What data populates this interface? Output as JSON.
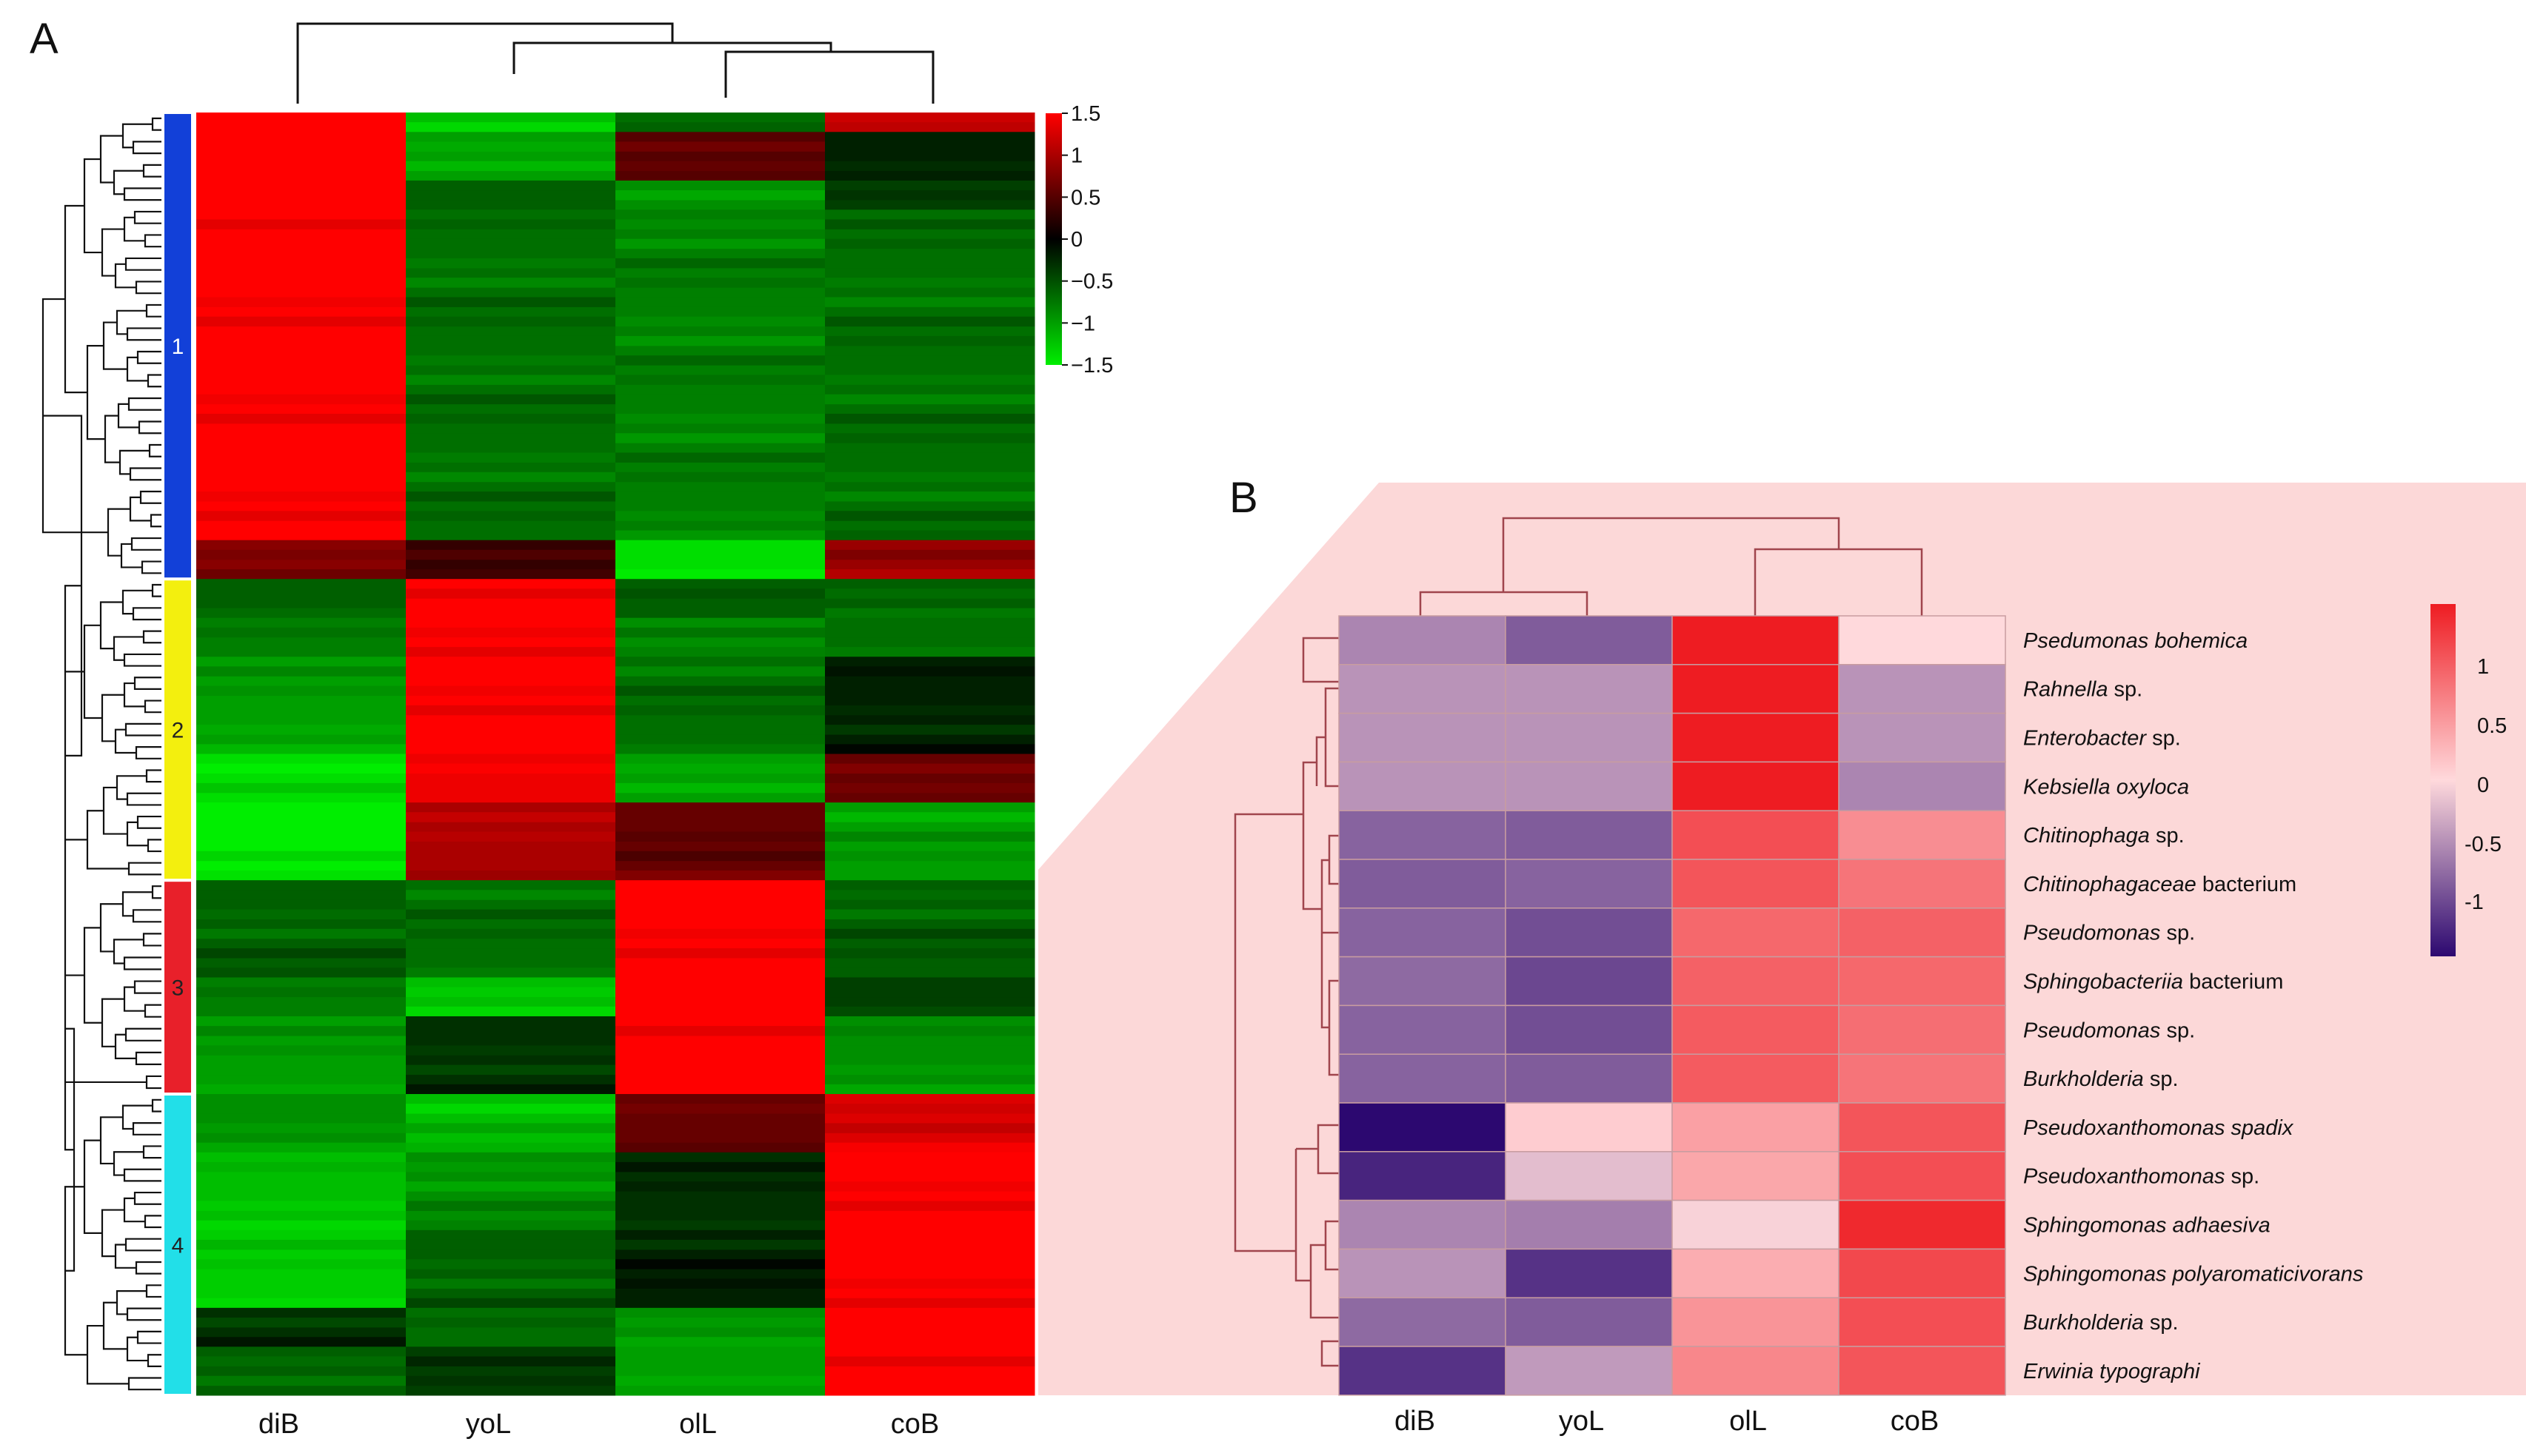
{
  "panelA": {
    "label": "A",
    "columns": [
      "diB",
      "yoL",
      "olL",
      "coB"
    ],
    "scale_ticks": [
      "1.5",
      "1",
      "0.5",
      "0",
      "−0.5",
      "−1",
      "−1.5"
    ],
    "clusters": [
      {
        "label": "1",
        "color": "#1240d8",
        "text_color": "#ffffff"
      },
      {
        "label": "2",
        "color": "#f3ef0e",
        "text_color": "#222222"
      },
      {
        "label": "3",
        "color": "#e8202a",
        "text_color": "#222222"
      },
      {
        "label": "4",
        "color": "#22dfe8",
        "text_color": "#222222"
      }
    ]
  },
  "panelB": {
    "label": "B",
    "columns": [
      "diB",
      "yoL",
      "olL",
      "coB"
    ],
    "scale_ticks": [
      "1",
      "0.5",
      "0",
      "-0.5",
      "-1"
    ]
  },
  "chart_data": [
    {
      "type": "heatmap",
      "title": "A",
      "columns": [
        "diB",
        "yoL",
        "olL",
        "coB"
      ],
      "value_range": [
        -1.5,
        1.5
      ],
      "colormap": [
        "#00ee00",
        "#000000",
        "#ff0000"
      ],
      "clusters": [
        {
          "name": "1",
          "rows": 48,
          "high_column": "diB",
          "segments": [
            [
              [
                2,
                1.5
              ],
              [
                5,
                1.5
              ],
              [
                3,
                1.5
              ],
              [
                34,
                1.5
              ],
              [
                4,
                0.8
              ]
            ],
            [
              [
                2,
                -1.2
              ],
              [
                5,
                -1.0
              ],
              [
                3,
                -0.6
              ],
              [
                34,
                -0.7
              ],
              [
                4,
                0.3
              ]
            ],
            [
              [
                2,
                -0.7
              ],
              [
                5,
                0.5
              ],
              [
                3,
                -0.9
              ],
              [
                34,
                -0.8
              ],
              [
                4,
                -1.4
              ]
            ],
            [
              [
                2,
                1.2
              ],
              [
                5,
                -0.2
              ],
              [
                3,
                -0.4
              ],
              [
                34,
                -0.7
              ],
              [
                4,
                0.9
              ]
            ]
          ]
        },
        {
          "name": "2",
          "rows": 31,
          "high_column": "yoL",
          "segments": [
            [
              [
                4,
                -0.6
              ],
              [
                4,
                -0.8
              ],
              [
                10,
                -1.0
              ],
              [
                5,
                -1.4
              ],
              [
                8,
                -1.5
              ]
            ],
            [
              [
                4,
                1.5
              ],
              [
                4,
                1.5
              ],
              [
                10,
                1.5
              ],
              [
                5,
                1.4
              ],
              [
                8,
                1.0
              ]
            ],
            [
              [
                4,
                -0.6
              ],
              [
                4,
                -0.9
              ],
              [
                10,
                -0.7
              ],
              [
                5,
                -1.0
              ],
              [
                8,
                0.6
              ]
            ],
            [
              [
                4,
                -0.6
              ],
              [
                4,
                -0.7
              ],
              [
                10,
                -0.2
              ],
              [
                5,
                0.6
              ],
              [
                8,
                -1.0
              ]
            ]
          ]
        },
        {
          "name": "3",
          "rows": 22,
          "high_column": "olL",
          "segments": [
            [
              [
                10,
                -0.6
              ],
              [
                4,
                -0.8
              ],
              [
                8,
                -1.0
              ]
            ],
            [
              [
                10,
                -0.7
              ],
              [
                4,
                -1.2
              ],
              [
                8,
                -0.3
              ]
            ],
            [
              [
                10,
                1.5
              ],
              [
                4,
                1.5
              ],
              [
                8,
                1.5
              ]
            ],
            [
              [
                10,
                -0.6
              ],
              [
                4,
                -0.4
              ],
              [
                8,
                -0.9
              ]
            ]
          ]
        },
        {
          "name": "4",
          "rows": 31,
          "high_column": "coB",
          "segments": [
            [
              [
                6,
                -0.9
              ],
              [
                8,
                -1.2
              ],
              [
                8,
                -1.3
              ],
              [
                4,
                -0.3
              ],
              [
                5,
                -0.6
              ]
            ],
            [
              [
                6,
                -1.2
              ],
              [
                8,
                -0.9
              ],
              [
                8,
                -0.6
              ],
              [
                4,
                -0.7
              ],
              [
                5,
                -0.4
              ]
            ],
            [
              [
                6,
                0.6
              ],
              [
                8,
                -0.3
              ],
              [
                8,
                -0.2
              ],
              [
                4,
                -0.9
              ],
              [
                5,
                -1.0
              ]
            ],
            [
              [
                6,
                1.3
              ],
              [
                8,
                1.5
              ],
              [
                8,
                1.5
              ],
              [
                4,
                1.5
              ],
              [
                5,
                1.5
              ]
            ]
          ]
        }
      ]
    },
    {
      "type": "heatmap",
      "title": "B",
      "columns": [
        "diB",
        "yoL",
        "olL",
        "coB"
      ],
      "value_range": [
        -1.5,
        1.5
      ],
      "colormap": [
        "#2c0870",
        "#ffd9dc",
        "#ee1c22"
      ],
      "rows": [
        {
          "name": "Psedumonas bohemica",
          "values": [
            -0.6,
            -0.9,
            1.5,
            0.0
          ]
        },
        {
          "name": "Rahnella sp.",
          "values": [
            -0.5,
            -0.5,
            1.5,
            -0.5
          ]
        },
        {
          "name": "Enterobacter sp.",
          "values": [
            -0.5,
            -0.5,
            1.5,
            -0.5
          ]
        },
        {
          "name": "Kebsiella oxyloca",
          "values": [
            -0.5,
            -0.5,
            1.5,
            -0.6
          ]
        },
        {
          "name": "Chitinophaga sp.",
          "values": [
            -0.85,
            -0.9,
            1.1,
            0.6
          ]
        },
        {
          "name": "Chitinophagaceae bacterium",
          "values": [
            -0.9,
            -0.85,
            1.05,
            0.8
          ]
        },
        {
          "name": "Pseudomonas sp.",
          "values": [
            -0.85,
            -1.0,
            0.9,
            0.95
          ]
        },
        {
          "name": "Sphingobacteriia bacterium",
          "values": [
            -0.8,
            -1.05,
            0.95,
            0.9
          ]
        },
        {
          "name": "Pseudomonas sp.",
          "values": [
            -0.85,
            -1.0,
            1.0,
            0.85
          ]
        },
        {
          "name": "Burkholderia sp.",
          "values": [
            -0.85,
            -0.9,
            1.0,
            0.8
          ]
        },
        {
          "name": "Pseudoxanthomonas spadix",
          "values": [
            -1.5,
            0.1,
            0.45,
            1.05
          ]
        },
        {
          "name": "Pseudoxanthomonas sp.",
          "values": [
            -1.3,
            -0.2,
            0.4,
            1.1
          ]
        },
        {
          "name": "Sphingomonas adhaesiva",
          "values": [
            -0.6,
            -0.65,
            -0.05,
            1.4
          ]
        },
        {
          "name": "Sphingomonas polyaromaticivorans",
          "values": [
            -0.5,
            -1.2,
            0.35,
            1.15
          ]
        },
        {
          "name": "Burkholderia sp.",
          "values": [
            -0.8,
            -0.9,
            0.55,
            1.1
          ]
        },
        {
          "name": "Erwinia typographi",
          "values": [
            -1.2,
            -0.45,
            0.65,
            1.05
          ]
        }
      ]
    }
  ]
}
